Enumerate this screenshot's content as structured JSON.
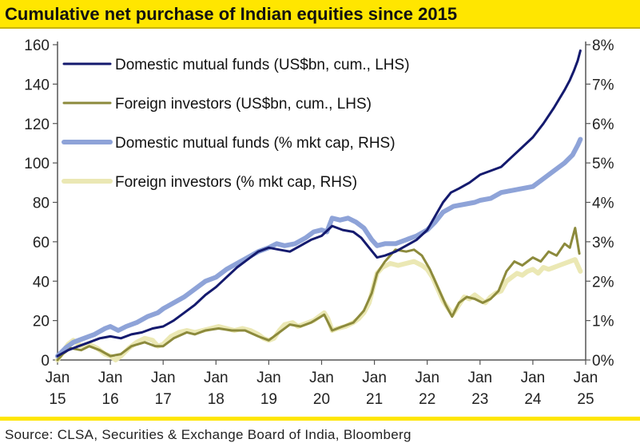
{
  "title": "Cumulative net purchase of Indian equities since 2015",
  "source": "Source: CLSA, Securities & Exchange Board of India, Bloomberg",
  "colors": {
    "accent_bar": "#ffe600",
    "dmf_usd": "#141a6e",
    "fii_usd": "#8c8a3c",
    "dmf_pct": "#8ea3d8",
    "fii_pct": "#ebe8b4",
    "axis": "#555555"
  },
  "chart_data": {
    "type": "line",
    "title": "Cumulative net purchase of Indian equities since 2015",
    "x_axis": {
      "ticks": [
        {
          "top": "Jan",
          "bottom": "15",
          "value": 2015
        },
        {
          "top": "Jan",
          "bottom": "16",
          "value": 2016
        },
        {
          "top": "Jan",
          "bottom": "17",
          "value": 2017
        },
        {
          "top": "Jan",
          "bottom": "18",
          "value": 2018
        },
        {
          "top": "Jan",
          "bottom": "19",
          "value": 2019
        },
        {
          "top": "Jan",
          "bottom": "20",
          "value": 2020
        },
        {
          "top": "Jan",
          "bottom": "21",
          "value": 2021
        },
        {
          "top": "Jan",
          "bottom": "22",
          "value": 2022
        },
        {
          "top": "Jan",
          "bottom": "23",
          "value": 2023
        },
        {
          "top": "Jan",
          "bottom": "24",
          "value": 2024
        },
        {
          "top": "Jan",
          "bottom": "25",
          "value": 2025
        }
      ],
      "range": [
        2015,
        2025
      ]
    },
    "y_left": {
      "range": [
        0,
        160
      ],
      "ticks": [
        0,
        20,
        40,
        60,
        80,
        100,
        120,
        140,
        160
      ],
      "tick_labels": [
        "0",
        "20",
        "40",
        "60",
        "80",
        "100",
        "120",
        "140",
        "160"
      ]
    },
    "y_right": {
      "range": [
        0,
        8
      ],
      "ticks": [
        0,
        1,
        2,
        3,
        4,
        5,
        6,
        7,
        8
      ],
      "tick_labels": [
        "0%",
        "1%",
        "2%",
        "3%",
        "4%",
        "5%",
        "6%",
        "7%",
        "8%"
      ]
    },
    "legend_position": "top-left",
    "series": [
      {
        "name": "Foreign investors (% mkt cap, RHS)",
        "axis": "right",
        "color_key": "fii_pct",
        "width": 6,
        "points": [
          [
            2015.0,
            0.0
          ],
          [
            2015.1,
            0.2
          ],
          [
            2015.2,
            0.4
          ],
          [
            2015.3,
            0.5
          ],
          [
            2015.45,
            0.35
          ],
          [
            2015.6,
            0.4
          ],
          [
            2015.75,
            0.3
          ],
          [
            2015.9,
            0.15
          ],
          [
            2016.0,
            0.1
          ],
          [
            2016.1,
            0.0
          ],
          [
            2016.2,
            0.1
          ],
          [
            2016.35,
            0.3
          ],
          [
            2016.5,
            0.45
          ],
          [
            2016.65,
            0.55
          ],
          [
            2016.8,
            0.5
          ],
          [
            2016.9,
            0.35
          ],
          [
            2017.0,
            0.4
          ],
          [
            2017.15,
            0.6
          ],
          [
            2017.3,
            0.7
          ],
          [
            2017.45,
            0.75
          ],
          [
            2017.6,
            0.7
          ],
          [
            2017.75,
            0.75
          ],
          [
            2017.9,
            0.8
          ],
          [
            2018.05,
            0.85
          ],
          [
            2018.2,
            0.8
          ],
          [
            2018.35,
            0.75
          ],
          [
            2018.5,
            0.8
          ],
          [
            2018.65,
            0.75
          ],
          [
            2018.8,
            0.65
          ],
          [
            2018.9,
            0.55
          ],
          [
            2019.0,
            0.5
          ],
          [
            2019.1,
            0.55
          ],
          [
            2019.2,
            0.75
          ],
          [
            2019.3,
            0.9
          ],
          [
            2019.45,
            0.95
          ],
          [
            2019.55,
            0.85
          ],
          [
            2019.65,
            0.9
          ],
          [
            2019.75,
            0.95
          ],
          [
            2019.85,
            1.0
          ],
          [
            2019.95,
            1.1
          ],
          [
            2020.05,
            1.2
          ],
          [
            2020.12,
            1.05
          ],
          [
            2020.2,
            0.75
          ],
          [
            2020.3,
            0.8
          ],
          [
            2020.45,
            0.85
          ],
          [
            2020.6,
            0.95
          ],
          [
            2020.7,
            1.05
          ],
          [
            2020.8,
            1.2
          ],
          [
            2020.9,
            1.45
          ],
          [
            2020.97,
            1.8
          ],
          [
            2021.05,
            2.2
          ],
          [
            2021.15,
            2.35
          ],
          [
            2021.3,
            2.45
          ],
          [
            2021.45,
            2.4
          ],
          [
            2021.6,
            2.45
          ],
          [
            2021.75,
            2.5
          ],
          [
            2021.9,
            2.4
          ],
          [
            2022.0,
            2.3
          ],
          [
            2022.1,
            2.1
          ],
          [
            2022.2,
            1.8
          ],
          [
            2022.3,
            1.5
          ],
          [
            2022.4,
            1.3
          ],
          [
            2022.48,
            1.15
          ],
          [
            2022.6,
            1.4
          ],
          [
            2022.7,
            1.6
          ],
          [
            2022.8,
            1.55
          ],
          [
            2022.9,
            1.65
          ],
          [
            2023.0,
            1.55
          ],
          [
            2023.1,
            1.45
          ],
          [
            2023.2,
            1.6
          ],
          [
            2023.3,
            1.7
          ],
          [
            2023.4,
            1.75
          ],
          [
            2023.5,
            2.0
          ],
          [
            2023.6,
            2.1
          ],
          [
            2023.7,
            2.2
          ],
          [
            2023.8,
            2.15
          ],
          [
            2023.9,
            2.25
          ],
          [
            2024.0,
            2.3
          ],
          [
            2024.1,
            2.2
          ],
          [
            2024.2,
            2.35
          ],
          [
            2024.3,
            2.3
          ],
          [
            2024.4,
            2.35
          ],
          [
            2024.5,
            2.4
          ],
          [
            2024.6,
            2.45
          ],
          [
            2024.7,
            2.5
          ],
          [
            2024.8,
            2.55
          ],
          [
            2024.85,
            2.4
          ],
          [
            2024.9,
            2.25
          ]
        ]
      },
      {
        "name": "Domestic mutual funds (% mkt cap, RHS)",
        "axis": "right",
        "color_key": "dmf_pct",
        "width": 6,
        "points": [
          [
            2015.0,
            0.1
          ],
          [
            2015.15,
            0.3
          ],
          [
            2015.3,
            0.45
          ],
          [
            2015.5,
            0.55
          ],
          [
            2015.7,
            0.65
          ],
          [
            2015.9,
            0.8
          ],
          [
            2016.0,
            0.85
          ],
          [
            2016.15,
            0.75
          ],
          [
            2016.3,
            0.85
          ],
          [
            2016.5,
            0.95
          ],
          [
            2016.7,
            1.1
          ],
          [
            2016.9,
            1.2
          ],
          [
            2017.0,
            1.3
          ],
          [
            2017.2,
            1.45
          ],
          [
            2017.4,
            1.6
          ],
          [
            2017.6,
            1.8
          ],
          [
            2017.8,
            2.0
          ],
          [
            2018.0,
            2.1
          ],
          [
            2018.2,
            2.3
          ],
          [
            2018.4,
            2.45
          ],
          [
            2018.6,
            2.6
          ],
          [
            2018.8,
            2.75
          ],
          [
            2019.0,
            2.85
          ],
          [
            2019.15,
            2.95
          ],
          [
            2019.3,
            2.9
          ],
          [
            2019.5,
            2.95
          ],
          [
            2019.7,
            3.1
          ],
          [
            2019.85,
            3.25
          ],
          [
            2020.0,
            3.3
          ],
          [
            2020.1,
            3.25
          ],
          [
            2020.2,
            3.6
          ],
          [
            2020.35,
            3.55
          ],
          [
            2020.5,
            3.6
          ],
          [
            2020.65,
            3.5
          ],
          [
            2020.8,
            3.35
          ],
          [
            2020.95,
            3.05
          ],
          [
            2021.05,
            2.9
          ],
          [
            2021.2,
            2.95
          ],
          [
            2021.4,
            2.95
          ],
          [
            2021.6,
            3.05
          ],
          [
            2021.8,
            3.15
          ],
          [
            2022.0,
            3.3
          ],
          [
            2022.15,
            3.5
          ],
          [
            2022.3,
            3.75
          ],
          [
            2022.5,
            3.9
          ],
          [
            2022.7,
            3.95
          ],
          [
            2022.9,
            4.0
          ],
          [
            2023.0,
            4.05
          ],
          [
            2023.2,
            4.1
          ],
          [
            2023.4,
            4.25
          ],
          [
            2023.6,
            4.3
          ],
          [
            2023.8,
            4.35
          ],
          [
            2024.0,
            4.4
          ],
          [
            2024.2,
            4.6
          ],
          [
            2024.4,
            4.8
          ],
          [
            2024.6,
            5.0
          ],
          [
            2024.75,
            5.2
          ],
          [
            2024.85,
            5.45
          ],
          [
            2024.9,
            5.6
          ]
        ]
      },
      {
        "name": "Foreign investors (US$bn, cum., LHS)",
        "axis": "left",
        "color_key": "fii_usd",
        "width": 3,
        "points": [
          [
            2015.0,
            0.0
          ],
          [
            2015.1,
            3.0
          ],
          [
            2015.25,
            6.0
          ],
          [
            2015.45,
            5.0
          ],
          [
            2015.6,
            7.0
          ],
          [
            2015.8,
            5.0
          ],
          [
            2016.0,
            2.0
          ],
          [
            2016.2,
            3.0
          ],
          [
            2016.4,
            7.0
          ],
          [
            2016.65,
            9.0
          ],
          [
            2016.85,
            7.0
          ],
          [
            2017.0,
            7.0
          ],
          [
            2017.2,
            11.0
          ],
          [
            2017.45,
            14.0
          ],
          [
            2017.6,
            13.0
          ],
          [
            2017.8,
            15.0
          ],
          [
            2018.05,
            16.0
          ],
          [
            2018.3,
            15.0
          ],
          [
            2018.55,
            15.0
          ],
          [
            2018.8,
            12.0
          ],
          [
            2019.0,
            10.0
          ],
          [
            2019.2,
            14.0
          ],
          [
            2019.4,
            18.0
          ],
          [
            2019.6,
            17.0
          ],
          [
            2019.8,
            19.0
          ],
          [
            2020.05,
            23.0
          ],
          [
            2020.2,
            15.0
          ],
          [
            2020.4,
            17.0
          ],
          [
            2020.6,
            19.0
          ],
          [
            2020.8,
            25.0
          ],
          [
            2020.95,
            34.0
          ],
          [
            2021.05,
            44.0
          ],
          [
            2021.2,
            50.0
          ],
          [
            2021.4,
            56.0
          ],
          [
            2021.6,
            55.0
          ],
          [
            2021.75,
            56.0
          ],
          [
            2021.9,
            53.0
          ],
          [
            2022.05,
            46.0
          ],
          [
            2022.2,
            37.0
          ],
          [
            2022.35,
            28.0
          ],
          [
            2022.47,
            22.0
          ],
          [
            2022.6,
            29.0
          ],
          [
            2022.75,
            32.0
          ],
          [
            2022.9,
            31.0
          ],
          [
            2023.05,
            29.0
          ],
          [
            2023.2,
            31.0
          ],
          [
            2023.35,
            35.0
          ],
          [
            2023.5,
            45.0
          ],
          [
            2023.65,
            50.0
          ],
          [
            2023.8,
            48.0
          ],
          [
            2024.0,
            52.0
          ],
          [
            2024.15,
            50.0
          ],
          [
            2024.3,
            55.0
          ],
          [
            2024.45,
            53.0
          ],
          [
            2024.6,
            59.0
          ],
          [
            2024.7,
            57.0
          ],
          [
            2024.8,
            67.0
          ],
          [
            2024.88,
            54.0
          ]
        ]
      },
      {
        "name": "Domestic mutual funds (US$bn, cum., LHS)",
        "axis": "left",
        "color_key": "dmf_usd",
        "width": 3,
        "points": [
          [
            2015.0,
            2.0
          ],
          [
            2015.2,
            5.0
          ],
          [
            2015.4,
            7.0
          ],
          [
            2015.6,
            9.0
          ],
          [
            2015.8,
            11.0
          ],
          [
            2016.0,
            12.0
          ],
          [
            2016.2,
            11.0
          ],
          [
            2016.4,
            13.0
          ],
          [
            2016.6,
            14.0
          ],
          [
            2016.8,
            16.0
          ],
          [
            2017.0,
            17.0
          ],
          [
            2017.2,
            20.0
          ],
          [
            2017.4,
            24.0
          ],
          [
            2017.6,
            28.0
          ],
          [
            2017.8,
            33.0
          ],
          [
            2018.0,
            37.0
          ],
          [
            2018.2,
            42.0
          ],
          [
            2018.4,
            47.0
          ],
          [
            2018.6,
            51.0
          ],
          [
            2018.8,
            55.0
          ],
          [
            2019.0,
            57.0
          ],
          [
            2019.2,
            56.0
          ],
          [
            2019.4,
            55.0
          ],
          [
            2019.6,
            58.0
          ],
          [
            2019.8,
            61.0
          ],
          [
            2020.0,
            63.0
          ],
          [
            2020.2,
            68.0
          ],
          [
            2020.4,
            66.0
          ],
          [
            2020.6,
            65.0
          ],
          [
            2020.75,
            62.0
          ],
          [
            2020.9,
            57.0
          ],
          [
            2021.05,
            52.0
          ],
          [
            2021.2,
            53.0
          ],
          [
            2021.4,
            55.0
          ],
          [
            2021.6,
            58.0
          ],
          [
            2021.8,
            61.0
          ],
          [
            2022.0,
            66.0
          ],
          [
            2022.15,
            73.0
          ],
          [
            2022.3,
            80.0
          ],
          [
            2022.45,
            85.0
          ],
          [
            2022.6,
            87.0
          ],
          [
            2022.8,
            90.0
          ],
          [
            2023.0,
            94.0
          ],
          [
            2023.2,
            96.0
          ],
          [
            2023.4,
            98.0
          ],
          [
            2023.6,
            103.0
          ],
          [
            2023.8,
            108.0
          ],
          [
            2024.0,
            113.0
          ],
          [
            2024.2,
            120.0
          ],
          [
            2024.4,
            128.0
          ],
          [
            2024.6,
            137.0
          ],
          [
            2024.7,
            142.0
          ],
          [
            2024.78,
            147.0
          ],
          [
            2024.85,
            152.0
          ],
          [
            2024.9,
            157.0
          ]
        ]
      }
    ],
    "legend": [
      {
        "label": "Domestic mutual funds (US$bn, cum., LHS)",
        "color_key": "dmf_usd",
        "width": 3
      },
      {
        "label": "Foreign investors (US$bn, cum., LHS)",
        "color_key": "fii_usd",
        "width": 3
      },
      {
        "label": "Domestic mutual funds (% mkt cap, RHS)",
        "color_key": "dmf_pct",
        "width": 6
      },
      {
        "label": "Foreign investors (% mkt cap, RHS)",
        "color_key": "fii_pct",
        "width": 6
      }
    ]
  }
}
